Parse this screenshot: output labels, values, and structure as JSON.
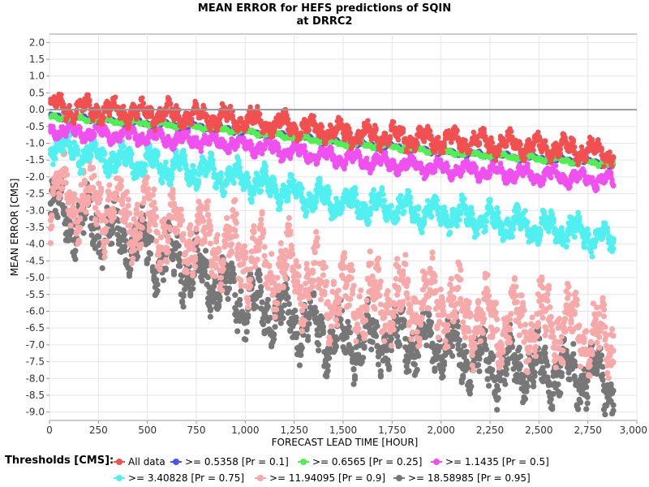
{
  "chart_data": {
    "type": "scatter",
    "title": "MEAN ERROR for HEFS predictions of SQIN",
    "subtitle": "at DRRC2",
    "xlabel": "FORECAST LEAD TIME [HOUR]",
    "ylabel": "MEAN ERROR [CMS]",
    "xlim": [
      0,
      3000
    ],
    "ylim": [
      -9.25,
      2.25
    ],
    "x_ticks": [
      "0",
      "250",
      "500",
      "750",
      "1,000",
      "1,250",
      "1,500",
      "1,750",
      "2,000",
      "2,250",
      "2,500",
      "2,750",
      "3,000"
    ],
    "y_ticks": [
      "2.0",
      "1.5",
      "1.0",
      "0.5",
      "0.0",
      "-0.5",
      "-1.0",
      "-1.5",
      "-2.0",
      "-2.5",
      "-3.0",
      "-3.5",
      "-4.0",
      "-4.5",
      "-5.0",
      "-5.5",
      "-6.0",
      "-6.5",
      "-7.0",
      "-7.5",
      "-8.0",
      "-8.5",
      "-9.0"
    ],
    "grid": true,
    "reference_line": 0.0,
    "lead_time_range": [
      6,
      2880
    ],
    "legend_title": "Thresholds [CMS]:",
    "legend_position": "bottom",
    "series": [
      {
        "name": "All data",
        "color": "#f25050",
        "x": [
          6,
          250,
          500,
          750,
          1000,
          1250,
          1500,
          1750,
          2000,
          2250,
          2500,
          2750,
          2880
        ],
        "y": [
          0.1,
          0.0,
          -0.1,
          -0.2,
          -0.3,
          -0.5,
          -0.7,
          -0.8,
          -0.9,
          -1.0,
          -1.1,
          -1.2,
          -1.3
        ]
      },
      {
        "name": ">= 0.5358 [Pr = 0.1]",
        "color": "#5050f0",
        "x": [
          6,
          250,
          500,
          750,
          1000,
          1250,
          1500,
          1750,
          2000,
          2250,
          2500,
          2750,
          2880
        ],
        "y": [
          -0.2,
          -0.3,
          -0.4,
          -0.5,
          -0.65,
          -0.8,
          -1.0,
          -1.1,
          -1.25,
          -1.35,
          -1.45,
          -1.55,
          -1.65
        ]
      },
      {
        "name": ">= 0.6565 [Pr = 0.25]",
        "color": "#50f050",
        "x": [
          6,
          250,
          500,
          750,
          1000,
          1250,
          1500,
          1750,
          2000,
          2250,
          2500,
          2750,
          2880
        ],
        "y": [
          -0.2,
          -0.3,
          -0.4,
          -0.5,
          -0.65,
          -0.8,
          -1.0,
          -1.1,
          -1.25,
          -1.35,
          -1.45,
          -1.55,
          -1.65
        ]
      },
      {
        "name": ">= 1.1435 [Pr = 0.5]",
        "color": "#f050f0",
        "x": [
          6,
          250,
          500,
          750,
          1000,
          1250,
          1500,
          1750,
          2000,
          2250,
          2500,
          2750,
          2880
        ],
        "y": [
          -0.6,
          -0.7,
          -0.8,
          -0.9,
          -1.05,
          -1.25,
          -1.45,
          -1.6,
          -1.75,
          -1.85,
          -1.95,
          -2.05,
          -2.15
        ]
      },
      {
        "name": ">= 3.40828 [Pr = 0.75]",
        "color": "#50f0f0",
        "x": [
          6,
          250,
          500,
          750,
          1000,
          1250,
          1500,
          1750,
          2000,
          2250,
          2500,
          2750,
          2880
        ],
        "y": [
          -1.0,
          -1.4,
          -1.6,
          -1.8,
          -2.1,
          -2.5,
          -2.8,
          -2.9,
          -3.1,
          -3.3,
          -3.5,
          -3.7,
          -3.9
        ]
      },
      {
        "name": ">= 11.94095 [Pr = 0.9]",
        "color": "#f7a8a8",
        "x": [
          6,
          250,
          500,
          750,
          1000,
          1250,
          1500,
          1750,
          2000,
          2250,
          2500,
          2750,
          2880
        ],
        "y": [
          -2.5,
          -2.7,
          -3.3,
          -3.8,
          -4.3,
          -4.9,
          -5.6,
          -5.7,
          -5.8,
          -6.4,
          -6.3,
          -6.7,
          -6.9
        ]
      },
      {
        "name": ">= 18.58985 [Pr = 0.95]",
        "color": "#777777",
        "x": [
          6,
          250,
          500,
          750,
          1000,
          1250,
          1500,
          1750,
          2000,
          2250,
          2500,
          2750,
          2880
        ],
        "y": [
          -3.0,
          -3.5,
          -4.2,
          -4.8,
          -5.7,
          -6.3,
          -6.9,
          -6.8,
          -7.0,
          -7.6,
          -7.7,
          -7.9,
          -8.1
        ]
      }
    ]
  }
}
